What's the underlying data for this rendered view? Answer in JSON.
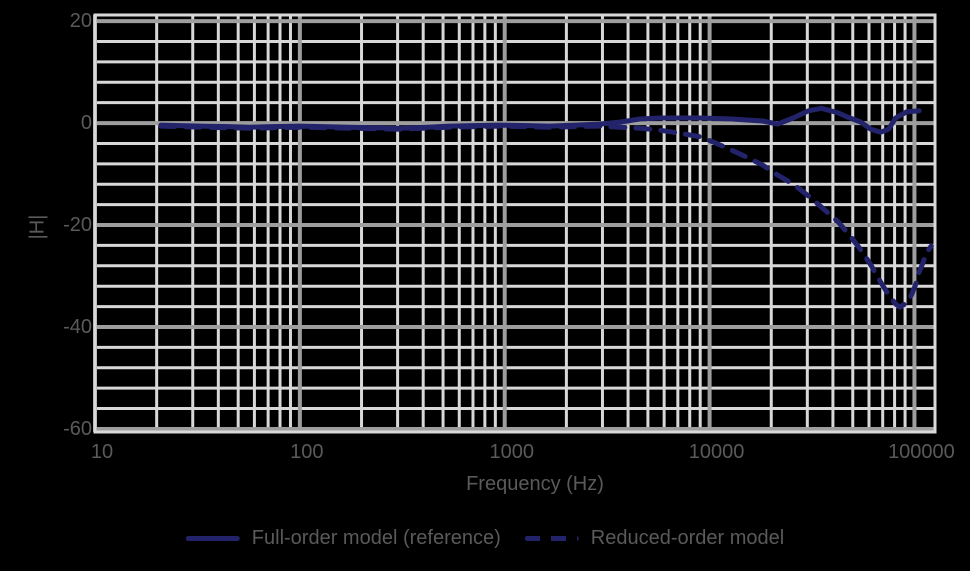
{
  "figure": {
    "background": "#000000",
    "text_color": "#5a5a5a",
    "grid_minor_color": "#d8d8d8",
    "grid_major_color": "#9e9e9e",
    "line_color": "#23236b"
  },
  "chart_data": {
    "type": "line",
    "title": "",
    "xlabel": "Frequency (Hz)",
    "ylabel": "|H|",
    "x_scale": "log",
    "xlim": [
      10,
      126000
    ],
    "ylim": [
      -60.6,
      21.2
    ],
    "x_ticks": [
      10,
      100,
      1000,
      10000,
      100000
    ],
    "x_tick_labels": [
      "10",
      "100",
      "1000",
      "10000",
      "100000"
    ],
    "y_ticks": [
      20,
      0,
      -20,
      -40,
      -60
    ],
    "y_tick_labels": [
      "20",
      "0",
      "-20",
      "-40",
      "-60"
    ],
    "y_minor_step": 4,
    "grid": "major+minor",
    "legend_position": "below",
    "series": [
      {
        "name": "Full-order model (reference)",
        "style": "solid",
        "points": [
          [
            21,
            -0.4
          ],
          [
            26,
            -0.5
          ],
          [
            33,
            -0.6
          ],
          [
            45,
            -0.7
          ],
          [
            57,
            -0.8
          ],
          [
            72,
            -0.7
          ],
          [
            100,
            -0.6
          ],
          [
            130,
            -0.7
          ],
          [
            175,
            -0.8
          ],
          [
            230,
            -0.9
          ],
          [
            307,
            -1.0
          ],
          [
            420,
            -0.8
          ],
          [
            537,
            -0.6
          ],
          [
            700,
            -0.5
          ],
          [
            943,
            -0.4
          ],
          [
            1300,
            -0.5
          ],
          [
            1655,
            -0.6
          ],
          [
            2200,
            -0.4
          ],
          [
            2905,
            -0.2
          ],
          [
            3650,
            0.2
          ],
          [
            4570,
            0.8
          ],
          [
            5730,
            1.0
          ],
          [
            7190,
            1.0
          ],
          [
            9000,
            1.0
          ],
          [
            12800,
            0.8
          ],
          [
            18100,
            0.4
          ],
          [
            21500,
            -0.2
          ],
          [
            25600,
            1.0
          ],
          [
            30400,
            2.4
          ],
          [
            35200,
            2.9
          ],
          [
            42500,
            2.0
          ],
          [
            47000,
            1.2
          ],
          [
            54800,
            0.2
          ],
          [
            61200,
            -1.2
          ],
          [
            68400,
            -1.8
          ],
          [
            74800,
            -1.2
          ],
          [
            80900,
            1.0
          ],
          [
            91500,
            2.2
          ],
          [
            105500,
            2.4
          ]
        ]
      },
      {
        "name": "Reduced-order model",
        "style": "dashed",
        "points": [
          [
            21,
            -0.6
          ],
          [
            33,
            -0.8
          ],
          [
            57,
            -1.0
          ],
          [
            100,
            -0.8
          ],
          [
            175,
            -1.0
          ],
          [
            307,
            -1.2
          ],
          [
            537,
            -0.8
          ],
          [
            943,
            -0.6
          ],
          [
            1655,
            -0.8
          ],
          [
            2905,
            -0.6
          ],
          [
            3650,
            -0.8
          ],
          [
            4570,
            -1.0
          ],
          [
            5730,
            -1.4
          ],
          [
            7190,
            -2.0
          ],
          [
            9000,
            -2.7
          ],
          [
            10700,
            -3.9
          ],
          [
            12800,
            -5.3
          ],
          [
            15200,
            -6.7
          ],
          [
            18100,
            -8.2
          ],
          [
            21500,
            -10.2
          ],
          [
            25600,
            -12.0
          ],
          [
            30400,
            -14.3
          ],
          [
            35200,
            -16.5
          ],
          [
            42500,
            -19.4
          ],
          [
            49100,
            -22.4
          ],
          [
            54800,
            -24.9
          ],
          [
            61200,
            -27.8
          ],
          [
            68400,
            -31.2
          ],
          [
            74800,
            -33.7
          ],
          [
            80900,
            -35.5
          ],
          [
            84900,
            -36.1
          ],
          [
            91500,
            -35.3
          ],
          [
            96800,
            -33.7
          ],
          [
            102000,
            -31.4
          ],
          [
            105500,
            -29.2
          ],
          [
            110300,
            -27.3
          ],
          [
            114100,
            -25.5
          ],
          [
            120800,
            -24.1
          ]
        ]
      }
    ]
  },
  "legend": {
    "items": [
      {
        "label": "Full-order model (reference)",
        "style": "solid"
      },
      {
        "label": "Reduced-order model",
        "style": "dashed"
      }
    ]
  }
}
